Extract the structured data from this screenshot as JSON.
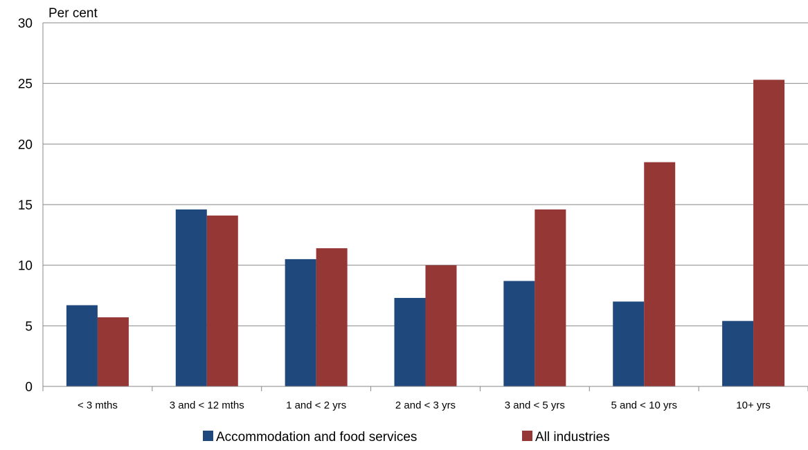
{
  "chart_data": {
    "type": "bar",
    "title": "",
    "ylabel": "Per cent",
    "xlabel": "",
    "ylim": [
      0,
      30
    ],
    "yticks": [
      0,
      5,
      10,
      15,
      20,
      25,
      30
    ],
    "grid": true,
    "legend_position": "bottom",
    "categories": [
      "< 3 mths",
      "3 and < 12 mths",
      "1 and < 2 yrs",
      "2 and < 3 yrs",
      "3 and < 5 yrs",
      "5 and < 10 yrs",
      "10+ yrs"
    ],
    "series": [
      {
        "name": "Accommodation and food services",
        "color": "#1F497D",
        "values": [
          6.7,
          14.6,
          10.5,
          7.3,
          8.7,
          7.0,
          5.4
        ]
      },
      {
        "name": "All industries",
        "color": "#953735",
        "values": [
          5.7,
          14.1,
          11.4,
          10.0,
          14.6,
          18.5,
          25.3
        ]
      }
    ]
  }
}
